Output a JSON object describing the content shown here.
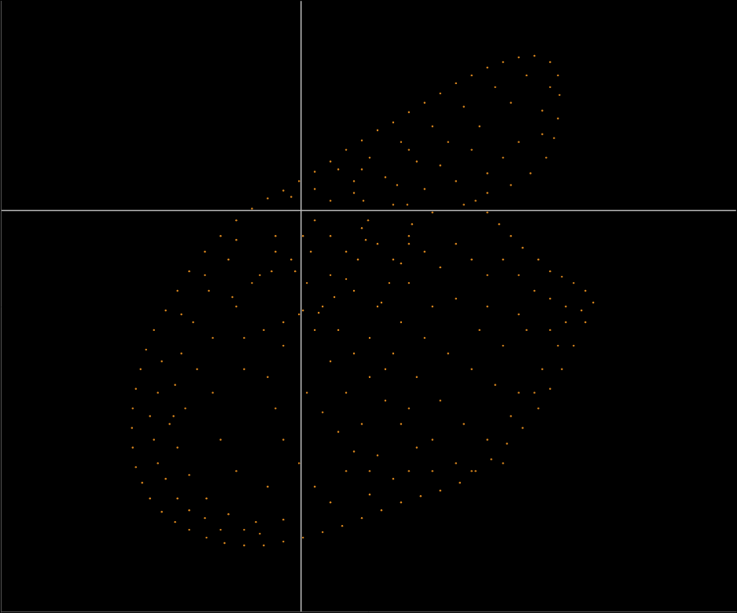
{
  "chart_data": {
    "type": "scatter",
    "x": [
      -63,
      -83,
      -103,
      -123,
      -143,
      -158,
      -173,
      -188,
      -198,
      -205,
      -211,
      -215,
      -216,
      -215,
      -211,
      -203,
      -193,
      -178,
      -161,
      -143,
      -121,
      -98,
      -73,
      -48,
      -23,
      2,
      27,
      52,
      77,
      102,
      127,
      152,
      177,
      202,
      222,
      242,
      262,
      282,
      302,
      317,
      332,
      347,
      362,
      372,
      362,
      347,
      332,
      317,
      302,
      282,
      267,
      252,
      237,
      222,
      237,
      267,
      292,
      312,
      322,
      327,
      329,
      327,
      317,
      297,
      277,
      257,
      237,
      217,
      197,
      177,
      157,
      137,
      117,
      97,
      77,
      57,
      37,
      17,
      -3,
      -23,
      -43,
      -93,
      -118,
      -138,
      -153,
      -161,
      -163,
      -158,
      -143,
      -121,
      -93,
      -58,
      -23,
      -183,
      -188,
      -173,
      -143,
      -103,
      -53,
      -178,
      -153,
      -123,
      -83,
      -193,
      -183,
      -158,
      -123,
      -73,
      -168,
      -148,
      -133,
      -113,
      -83,
      -53,
      -33,
      -103,
      -83,
      -43,
      -113,
      -73,
      17,
      37,
      57,
      77,
      97,
      117,
      137,
      157,
      177,
      197,
      217,
      237,
      257,
      277,
      297,
      317,
      337,
      357,
      -33,
      -13,
      7,
      27,
      47,
      67,
      87,
      107,
      127,
      147,
      167,
      37,
      67,
      97,
      127,
      157,
      187,
      217,
      247,
      277,
      307,
      327,
      337,
      17,
      37,
      57,
      77,
      97,
      117,
      57,
      37,
      17,
      -3,
      -23,
      -33,
      -43,
      -23,
      -3,
      117,
      147,
      177,
      207,
      237,
      267,
      297,
      227,
      257,
      287,
      317,
      197,
      237,
      277,
      167,
      137,
      87,
      107,
      137,
      167,
      197,
      137,
      87,
      217,
      257,
      47,
      87,
      127,
      167,
      207,
      247,
      287,
      317,
      307,
      267,
      227,
      187,
      147,
      107,
      67,
      37,
      157,
      197,
      237,
      277,
      307,
      217,
      257,
      177,
      117,
      167,
      207,
      -13,
      17,
      77,
      137,
      67,
      79,
      85,
      82,
      72,
      57,
      42,
      22,
      122,
      135,
      141,
      137,
      127,
      112,
      102,
      -73,
      -48,
      -23,
      2,
      -38,
      -63,
      -88,
      7,
      27,
      47,
      67,
      87,
      2,
      12,
      -8
    ],
    "values": [
      2,
      -13,
      -33,
      -53,
      -78,
      -103,
      -128,
      -153,
      -178,
      -203,
      -228,
      -253,
      -278,
      -303,
      -328,
      -348,
      -368,
      -385,
      -398,
      -408,
      -418,
      -425,
      -428,
      -428,
      -423,
      -418,
      -411,
      -403,
      -393,
      -383,
      -373,
      -365,
      -358,
      -348,
      -333,
      -318,
      -298,
      -278,
      -253,
      -228,
      -203,
      -173,
      -143,
      -118,
      -103,
      -93,
      -85,
      -78,
      -63,
      -48,
      -33,
      -18,
      -3,
      12,
      22,
      32,
      47,
      67,
      92,
      117,
      147,
      172,
      189,
      197,
      195,
      189,
      182,
      172,
      162,
      149,
      137,
      125,
      112,
      102,
      89,
      77,
      62,
      49,
      37,
      25,
      15,
      -63,
      -103,
      -143,
      -183,
      -223,
      -263,
      -303,
      -338,
      -368,
      -388,
      -398,
      -395,
      -233,
      -293,
      -343,
      -383,
      -408,
      -413,
      -193,
      -133,
      -83,
      -38,
      -263,
      -323,
      -368,
      -393,
      -408,
      -273,
      -253,
      -203,
      -163,
      -123,
      -83,
      -53,
      -293,
      -333,
      -353,
      -233,
      -203,
      -13,
      -33,
      -53,
      -23,
      -43,
      -63,
      -33,
      -53,
      -73,
      -43,
      -63,
      -83,
      -63,
      -83,
      -103,
      -113,
      -123,
      -128,
      -33,
      -63,
      -93,
      -123,
      -153,
      -183,
      -213,
      -243,
      -273,
      -303,
      -333,
      -83,
      -103,
      -123,
      -143,
      -163,
      -183,
      -203,
      -223,
      -233,
      -203,
      -173,
      -143,
      -153,
      -193,
      -233,
      -273,
      -313,
      -343,
      -333,
      -373,
      -353,
      -323,
      -293,
      -253,
      -213,
      -173,
      -133,
      -183,
      -213,
      -243,
      -273,
      -293,
      -263,
      -233,
      -153,
      -173,
      -153,
      -153,
      -113,
      -123,
      -133,
      -123,
      -93,
      -163,
      -203,
      -253,
      -293,
      -323,
      -333,
      -363,
      -333,
      -323,
      52,
      67,
      87,
      107,
      132,
      157,
      172,
      157,
      127,
      137,
      107,
      87,
      62,
      42,
      22,
      12,
      27,
      37,
      47,
      87,
      97,
      77,
      67,
      57,
      7,
      -3,
      7,
      17,
      27,
      52,
      77,
      37,
      12,
      -13,
      -38,
      -63,
      -88,
      -111,
      -131,
      32,
      7,
      -18,
      -43,
      -68,
      -93,
      -118,
      -163,
      -153,
      -143,
      -128,
      -78,
      -93,
      -111,
      -233,
      -258,
      -283,
      -308,
      -333,
      -33,
      -53,
      -78
    ],
    "color": "#e08a1e",
    "marker": "circle",
    "xlim": [
      -383,
      554
    ],
    "ylim": [
      -513,
      267
    ],
    "xticks": [
      0
    ],
    "yticks": [
      0
    ],
    "grid": true,
    "tick_labels": false
  }
}
